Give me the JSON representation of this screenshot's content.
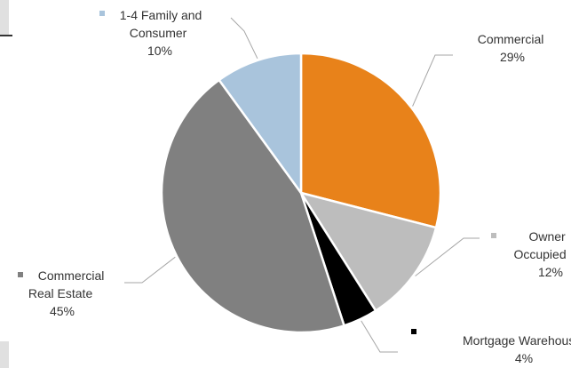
{
  "chart_data": {
    "type": "pie",
    "title": "",
    "legend": "none",
    "slices": [
      {
        "name": "Commercial",
        "value": 29,
        "label": "29%",
        "color": "#E8821A"
      },
      {
        "name": "Owner Occupied",
        "value": 12,
        "label": "12%",
        "color": "#BDBDBD"
      },
      {
        "name": "Mortgage Warehouse",
        "value": 4,
        "label": "4%",
        "color": "#000000"
      },
      {
        "name": "Commercial Real Estate",
        "value": 45,
        "label": "45%",
        "color": "#808080"
      },
      {
        "name": "1-4 Family and Consumer",
        "value": 10,
        "label": "10%",
        "color": "#A9C4DC"
      }
    ],
    "labels": {
      "commercial": {
        "lines": [
          "Commercial",
          "29%"
        ]
      },
      "owner_occupied": {
        "lines": [
          "Owner",
          "Occupied",
          "12%"
        ]
      },
      "mortgage_warehouse": {
        "lines": [
          "Mortgage Warehouse",
          "4%"
        ]
      },
      "commercial_real_estate": {
        "lines": [
          "Commercial",
          "Real Estate",
          "45%"
        ]
      },
      "family_consumer": {
        "lines": [
          "1-4 Family and",
          "Consumer",
          "10%"
        ]
      }
    }
  },
  "colors": {
    "page_bg": "#ffffff",
    "leader_line": "#A6A6A6",
    "text": "#333333"
  }
}
